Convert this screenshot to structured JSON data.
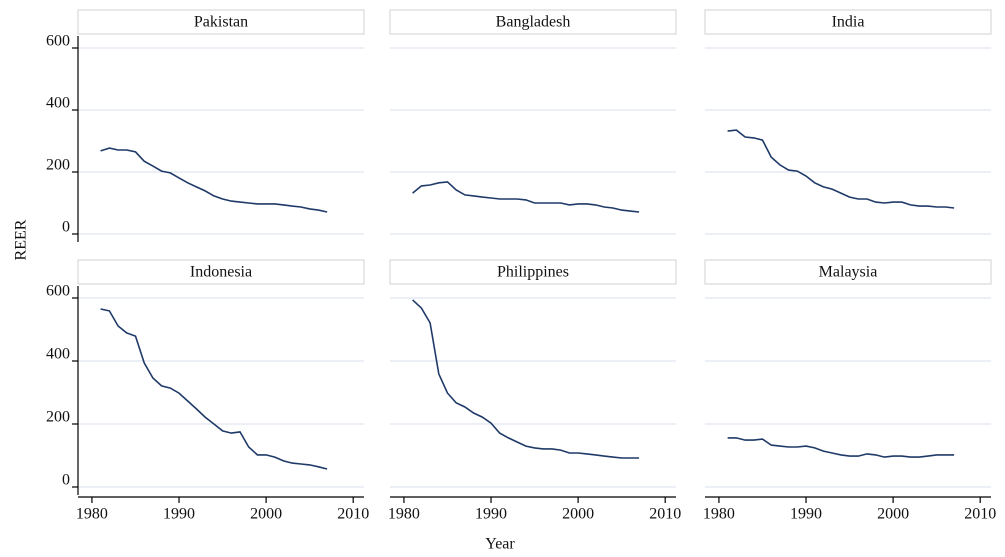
{
  "chart_data": {
    "type": "line",
    "x_label": "Year",
    "y_label": "REER",
    "x": [
      1981,
      1982,
      1983,
      1984,
      1985,
      1986,
      1987,
      1988,
      1989,
      1990,
      1991,
      1992,
      1993,
      1994,
      1995,
      1996,
      1997,
      1998,
      1999,
      2000,
      2001,
      2002,
      2003,
      2004,
      2005,
      2006,
      2007
    ],
    "xlim": [
      1978.4,
      2011.7
    ],
    "xticks": [
      1980,
      1990,
      2000,
      2010
    ],
    "ylim": [
      0,
      600
    ],
    "yticks": [
      0,
      200,
      400,
      600
    ],
    "grid": true,
    "color": "#1f3a68",
    "panels": [
      {
        "title": "Pakistan",
        "values": [
          268,
          277,
          271,
          271,
          265,
          235,
          219,
          203,
          197,
          181,
          165,
          152,
          139,
          123,
          113,
          106,
          103,
          100,
          97,
          97,
          97,
          94,
          90,
          87,
          81,
          77,
          71
        ]
      },
      {
        "title": "Bangladesh",
        "values": [
          132,
          155,
          158,
          165,
          168,
          142,
          126,
          123,
          119,
          116,
          113,
          113,
          113,
          110,
          100,
          100,
          100,
          100,
          94,
          97,
          97,
          94,
          87,
          84,
          77,
          74,
          71
        ]
      },
      {
        "title": "India",
        "values": [
          332,
          335,
          313,
          310,
          303,
          248,
          223,
          206,
          203,
          187,
          165,
          152,
          145,
          132,
          119,
          113,
          113,
          103,
          100,
          103,
          103,
          94,
          90,
          90,
          87,
          87,
          84
        ]
      },
      {
        "title": "Indonesia",
        "values": [
          565,
          559,
          511,
          489,
          479,
          394,
          346,
          321,
          314,
          298,
          273,
          248,
          222,
          200,
          178,
          171,
          175,
          127,
          102,
          102,
          95,
          83,
          76,
          73,
          70,
          64,
          57
        ]
      },
      {
        "title": "Philippines",
        "values": [
          594,
          568,
          521,
          359,
          298,
          267,
          254,
          235,
          222,
          203,
          171,
          156,
          143,
          130,
          124,
          121,
          121,
          117,
          108,
          108,
          105,
          102,
          98,
          95,
          92,
          92,
          92
        ]
      },
      {
        "title": "Malaysia",
        "values": [
          156,
          156,
          149,
          149,
          152,
          133,
          130,
          127,
          127,
          130,
          124,
          114,
          108,
          102,
          98,
          98,
          105,
          102,
          95,
          98,
          98,
          95,
          95,
          98,
          102,
          102,
          102
        ]
      }
    ]
  }
}
